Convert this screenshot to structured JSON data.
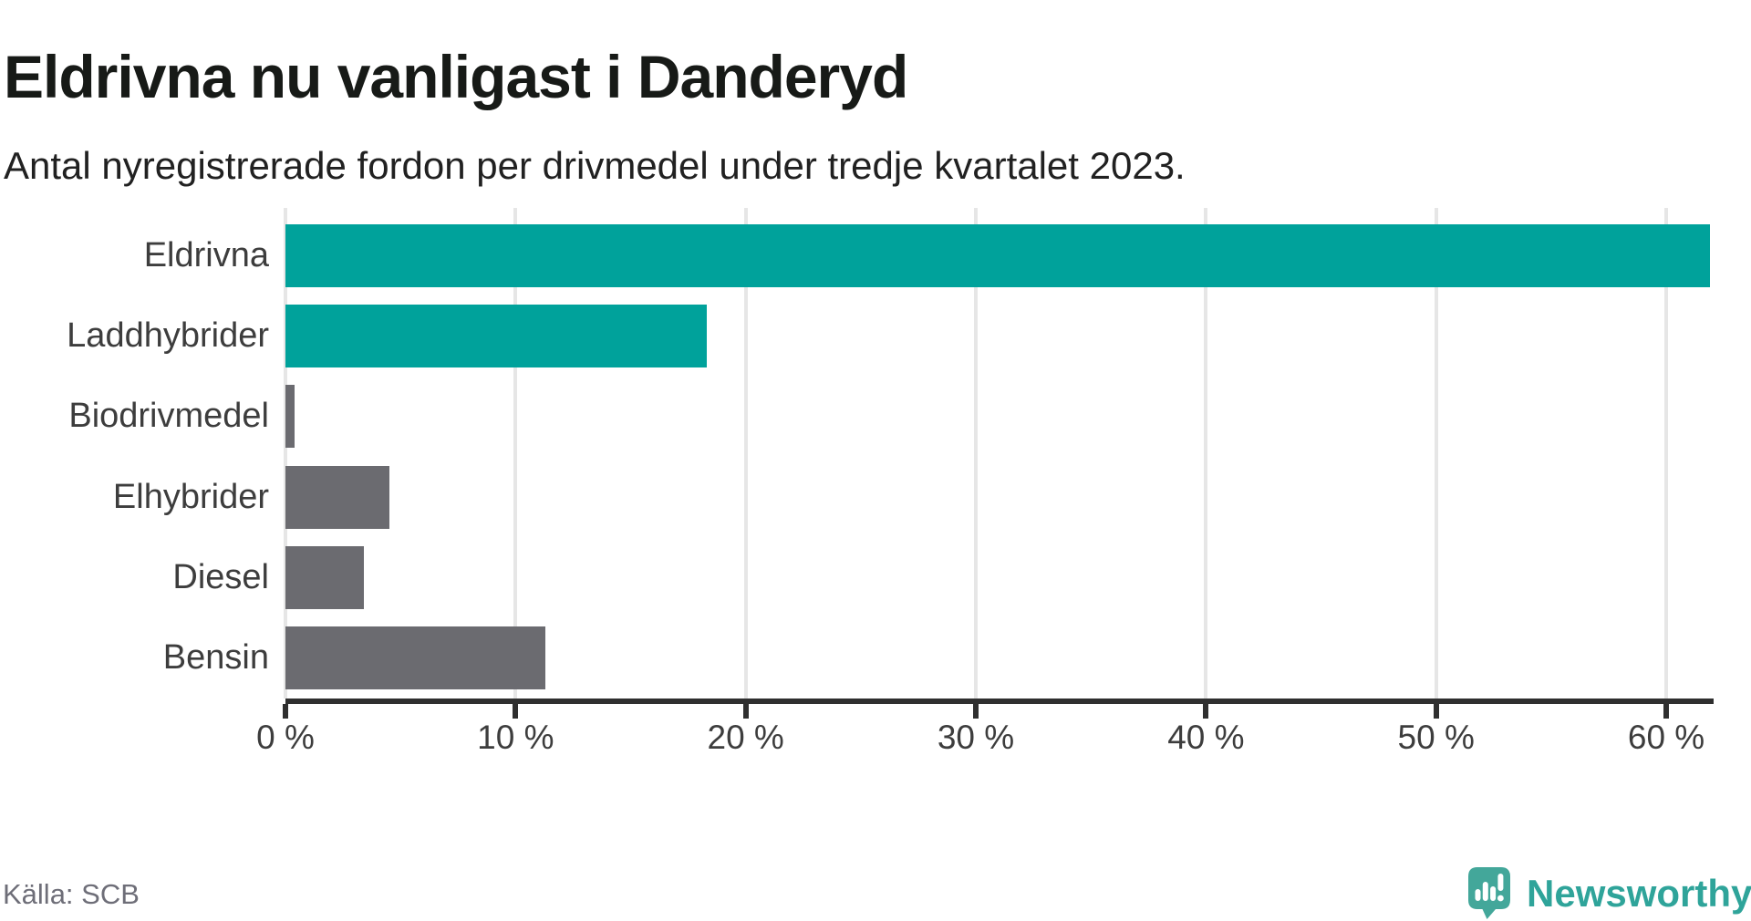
{
  "header": {
    "title": "Eldrivna nu vanligast i Danderyd",
    "subtitle": "Antal nyregistrerade fordon per drivmedel under tredje kvartalet 2023."
  },
  "chart_data": {
    "type": "bar",
    "orientation": "horizontal",
    "title": "Eldrivna nu vanligast i Danderyd",
    "subtitle": "Antal nyregistrerade fordon per drivmedel under tredje kvartalet 2023.",
    "categories": [
      "Eldrivna",
      "Laddhybrider",
      "Biodrivmedel",
      "Elhybrider",
      "Diesel",
      "Bensin"
    ],
    "values": [
      61.9,
      18.3,
      0.4,
      4.5,
      3.4,
      11.3
    ],
    "unit": "%",
    "bar_colors": [
      "#00a29b",
      "#00a29b",
      "#6b6b70",
      "#6b6b70",
      "#6b6b70",
      "#6b6b70"
    ],
    "x_ticks": [
      0,
      10,
      20,
      30,
      40,
      50,
      60
    ],
    "x_tick_labels": [
      "0 %",
      "10 %",
      "20 %",
      "30 %",
      "40 %",
      "50 %",
      "60 %"
    ],
    "xlim": [
      0,
      61.9
    ],
    "xlabel": "",
    "ylabel": "",
    "grid": "vertical",
    "legend": "none"
  },
  "footer": {
    "source": "Källa: SCB",
    "brand": "Newsworthy"
  },
  "colors": {
    "accent_teal": "#00a29b",
    "neutral_gray": "#6b6b70",
    "logo_teal": "#43a79a",
    "axis_dark": "#2f2f2f",
    "gridline": "#e6e6e6"
  }
}
